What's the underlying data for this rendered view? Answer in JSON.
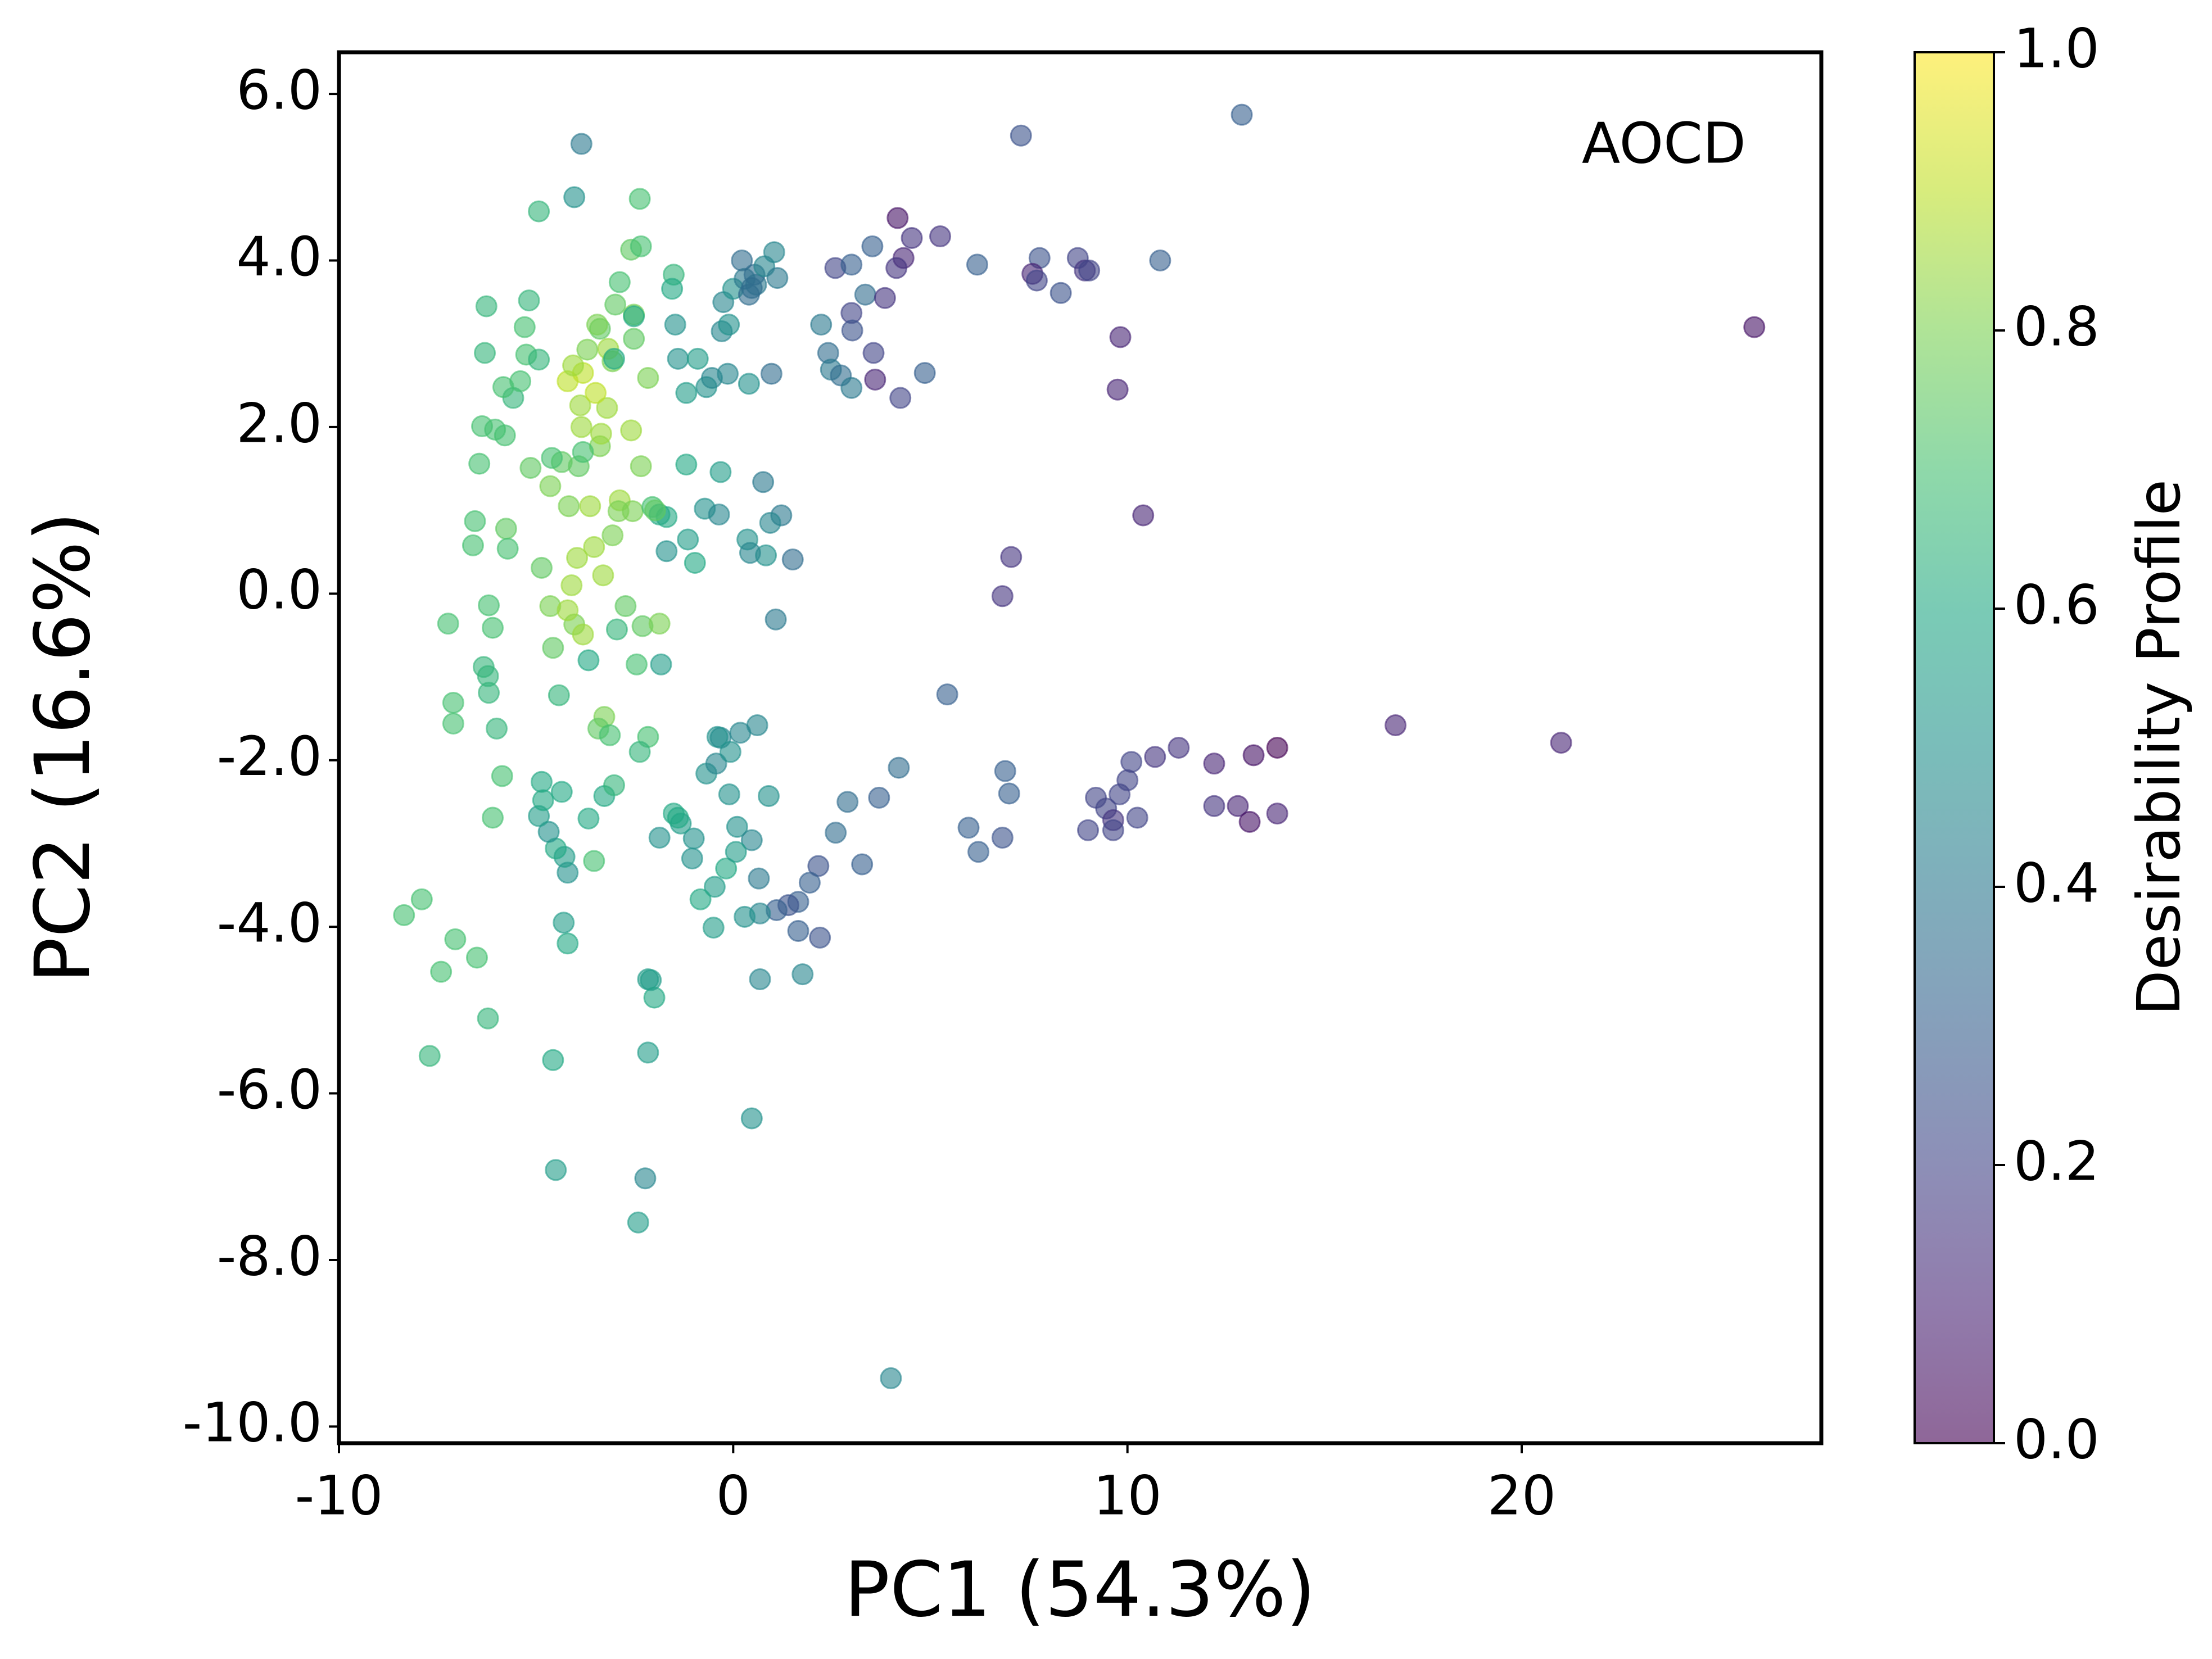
{
  "chart_data": {
    "type": "scatter",
    "xlabel": "PC1 (54.3%)",
    "ylabel": "PC2 (16.6%)",
    "annotation": "AOCD",
    "colormap": "viridis",
    "alpha": 0.6,
    "xlim": [
      -10,
      27.6
    ],
    "xticks": [
      -10,
      0,
      10,
      20
    ],
    "ylim": [
      -10.2,
      6.5
    ],
    "yticks": [
      {
        "value": 6,
        "label": "6.0"
      },
      {
        "value": 4,
        "label": "4.0"
      },
      {
        "value": 2,
        "label": "2.0"
      },
      {
        "value": 0,
        "label": "0.0"
      },
      {
        "value": -2,
        "label": "-2.0"
      },
      {
        "value": -4,
        "label": "-4.0"
      },
      {
        "value": -6,
        "label": "-6.0"
      },
      {
        "value": -8,
        "label": "-8.0"
      },
      {
        "value": -10,
        "label": "-10.0"
      }
    ],
    "colorbar": {
      "label": "Desirability Profile",
      "lim": [
        0,
        1
      ],
      "ticks": [
        {
          "value": 0,
          "label": "0.0"
        },
        0.2,
        0.4,
        0.6,
        0.8,
        {
          "value": 1,
          "label": "1.0"
        }
      ]
    },
    "x": [
      25.9,
      12.9,
      7.3,
      -3.85,
      4.0,
      0.47,
      -2.23,
      -2.41,
      -4.5,
      -4.57,
      -7.7,
      -6.22,
      -7.41,
      -6.5,
      -7.05,
      -8.35,
      -7.9,
      16.8,
      21.0,
      13.8,
      13.2,
      12.2,
      11.3,
      10.7,
      10.1,
      10.0,
      9.8,
      9.2,
      9.46,
      9.64,
      9.64,
      9.0,
      10.25,
      12.2,
      12.8,
      13.1,
      13.8,
      10.4,
      7.05,
      6.83,
      5.43,
      6.9,
      7.0,
      6.83,
      5.97,
      6.22,
      4.2,
      3.7,
      2.9,
      2.6,
      3.27,
      2.16,
      1.94,
      1.65,
      1.4,
      1.1,
      1.65,
      2.2,
      1.76,
      0.68,
      0.68,
      0.29,
      0.65,
      0.1,
      0.47,
      0.9,
      -0.1,
      -0.68,
      -0.43,
      -0.32,
      -0.07,
      0.18,
      0.61,
      -0.4,
      -0.18,
      0.07,
      -0.47,
      -0.83,
      -0.5,
      -1.04,
      -1.0,
      -1.33,
      -1.51,
      -1.4,
      -1.87,
      -2.16,
      -2.0,
      -2.09,
      -2.16,
      -4.2,
      -4.3,
      -4.2,
      -4.28,
      -4.5,
      -4.68,
      -4.93,
      -4.82,
      -4.35,
      -4.86,
      -3.53,
      -3.67,
      -3.27,
      -3.02,
      -6.1,
      -5.86,
      -6.0,
      -7.1,
      -7.1,
      -6.2,
      -6.33,
      -6.22,
      -7.23,
      -6.1,
      -6.2,
      -5.76,
      -6.55,
      -6.6,
      -5.72,
      -4.86,
      -4.64,
      -4.57,
      -4.42,
      -3.27,
      -3.42,
      -3.13,
      -2.16,
      -2.37,
      -3.67,
      -2.45,
      -1.83,
      -2.95,
      -2.3,
      -1.87,
      -2.73,
      -4.03,
      -3.81,
      -4.2,
      -4.1,
      -3.3,
      -3.96,
      -3.53,
      -3.06,
      -2.88,
      -2.55,
      -2.05,
      -1.87,
      -1.69,
      -1.69,
      -1.15,
      -0.97,
      -0.72,
      -0.36,
      -0.32,
      -1.19,
      0.76,
      1.22,
      0.94,
      0.36,
      0.83,
      1.51,
      1.08,
      0.43,
      -1.98,
      -2.34,
      -3.38,
      -3.92,
      -3.81,
      -4.35,
      -4.6,
      -5.14,
      -4.64,
      -4.17,
      -3.63,
      -2.91,
      -6.44,
      -5.79,
      -6.37,
      -6.04,
      -5.58,
      -5.4,
      -5.83,
      -5.25,
      -6.3,
      -4.93,
      -5.29,
      -6.26,
      -5.18,
      -4.93,
      -4.03,
      -2.37,
      -3.35,
      -3.85,
      -3.2,
      -3.88,
      -3.49,
      -4.2,
      -3.81,
      -4.06,
      -3.7,
      -3.06,
      -3.17,
      -2.59,
      -2.16,
      -3.02,
      -3.38,
      -3.45,
      -2.99,
      -2.52,
      -2.52,
      -2.52,
      -2.88,
      -2.59,
      -2.34,
      -1.47,
      -1.4,
      -0.9,
      -1.19,
      -0.68,
      -1.51,
      -1.55,
      -0.29,
      -0.11,
      -0.25,
      0.0,
      0.29,
      0.58,
      0.54,
      0.79,
      1.04,
      1.12,
      0.22,
      0.4,
      0.47,
      -0.54,
      -0.14,
      0.4,
      0.97,
      2.23,
      2.41,
      2.48,
      2.73,
      3.0,
      2.59,
      3.0,
      3.53,
      3.35,
      3.0,
      3.02,
      3.56,
      3.6,
      3.85,
      4.17,
      4.32,
      4.14,
      4.53,
      5.25,
      4.24,
      4.86,
      6.19,
      7.77,
      7.59,
      7.7,
      8.31,
      8.74,
      8.92,
      9.03,
      10.83,
      9.82,
      9.75
    ],
    "values": [
      3.2,
      5.75,
      5.5,
      5.4,
      -9.42,
      -6.3,
      -7.02,
      -7.55,
      -6.92,
      -5.6,
      -5.55,
      -5.1,
      -4.54,
      -4.37,
      -4.15,
      -3.86,
      -3.67,
      -1.58,
      -1.79,
      -1.85,
      -1.94,
      -2.04,
      -1.85,
      -1.96,
      -2.02,
      -2.24,
      -2.41,
      -2.45,
      -2.58,
      -2.72,
      -2.84,
      -2.84,
      -2.69,
      -2.55,
      -2.55,
      -2.74,
      -2.64,
      0.94,
      0.44,
      -0.03,
      -1.21,
      -2.13,
      -2.4,
      -2.93,
      -2.81,
      -3.1,
      -2.09,
      -2.45,
      -2.5,
      -2.87,
      -3.25,
      -3.27,
      -3.47,
      -3.7,
      -3.74,
      -3.8,
      -4.05,
      -4.13,
      -4.57,
      -4.63,
      -3.84,
      -3.88,
      -3.42,
      -2.8,
      -2.96,
      -2.43,
      -2.41,
      -2.16,
      -2.04,
      -1.73,
      -1.9,
      -1.67,
      -1.58,
      -1.72,
      -3.3,
      -3.1,
      -3.52,
      -3.67,
      -4.01,
      -3.18,
      -2.94,
      -2.76,
      -2.64,
      -2.69,
      -2.93,
      -4.63,
      -4.85,
      -4.64,
      -5.51,
      -4.2,
      -3.95,
      -3.35,
      -3.16,
      -3.06,
      -2.86,
      -2.67,
      -2.48,
      -2.38,
      -2.26,
      -3.21,
      -2.7,
      -2.43,
      -2.3,
      -2.69,
      -2.19,
      -1.62,
      -1.56,
      -1.31,
      -1.19,
      -0.88,
      -0.99,
      -0.36,
      -0.41,
      -0.14,
      0.78,
      0.87,
      0.58,
      0.54,
      0.31,
      -0.15,
      -0.65,
      -1.22,
      -1.48,
      -1.62,
      -1.7,
      -1.72,
      -1.9,
      -0.8,
      -0.85,
      -0.85,
      -0.43,
      -0.39,
      -0.36,
      -0.15,
      -0.37,
      -0.49,
      -0.2,
      0.1,
      0.22,
      0.43,
      0.56,
      0.7,
      1.12,
      0.99,
      1.04,
      0.95,
      0.92,
      0.51,
      0.65,
      0.37,
      1.02,
      0.95,
      1.46,
      1.55,
      1.34,
      0.94,
      0.85,
      0.65,
      0.46,
      0.41,
      -0.31,
      0.49,
      1.0,
      1.53,
      1.77,
      1.53,
      1.7,
      1.58,
      1.63,
      1.51,
      1.29,
      1.05,
      1.05,
      0.99,
      1.56,
      1.9,
      2.01,
      1.97,
      2.35,
      2.55,
      2.48,
      2.87,
      2.89,
      2.81,
      3.2,
      3.45,
      3.52,
      4.59,
      4.76,
      4.74,
      1.92,
      2.0,
      2.23,
      2.26,
      2.41,
      2.55,
      2.65,
      2.74,
      2.93,
      2.79,
      2.94,
      1.96,
      2.59,
      2.82,
      3.18,
      3.23,
      3.47,
      3.35,
      3.06,
      3.33,
      3.74,
      4.13,
      4.17,
      3.23,
      2.82,
      2.82,
      2.41,
      2.48,
      3.83,
      3.66,
      3.15,
      3.23,
      3.5,
      3.66,
      3.78,
      3.71,
      3.83,
      3.93,
      4.1,
      3.79,
      4.0,
      3.59,
      3.67,
      2.59,
      2.64,
      2.52,
      2.64,
      3.23,
      2.89,
      2.69,
      2.62,
      2.47,
      3.91,
      3.95,
      4.17,
      3.59,
      3.37,
      3.16,
      2.89,
      2.57,
      3.55,
      4.51,
      4.03,
      3.91,
      4.27,
      4.29,
      2.35,
      2.65,
      3.95,
      4.03,
      3.84,
      3.76,
      3.61,
      4.03,
      3.88,
      3.88,
      4.0,
      3.08,
      2.45
    ],
    "color_values": [
      0.05,
      0.3,
      0.25,
      0.4,
      0.45,
      0.5,
      0.45,
      0.55,
      0.55,
      0.6,
      0.65,
      0.65,
      0.7,
      0.7,
      0.7,
      0.7,
      0.7,
      0.1,
      0.1,
      0.0,
      0.05,
      0.1,
      0.15,
      0.15,
      0.2,
      0.2,
      0.2,
      0.2,
      0.2,
      0.15,
      0.2,
      0.2,
      0.2,
      0.15,
      0.1,
      0.05,
      0.1,
      0.1,
      0.15,
      0.15,
      0.3,
      0.3,
      0.3,
      0.25,
      0.3,
      0.3,
      0.35,
      0.3,
      0.35,
      0.35,
      0.3,
      0.25,
      0.3,
      0.3,
      0.25,
      0.3,
      0.3,
      0.25,
      0.45,
      0.45,
      0.45,
      0.5,
      0.4,
      0.5,
      0.45,
      0.5,
      0.5,
      0.5,
      0.45,
      0.45,
      0.5,
      0.45,
      0.45,
      0.5,
      0.6,
      0.55,
      0.55,
      0.6,
      0.55,
      0.5,
      0.5,
      0.55,
      0.6,
      0.6,
      0.5,
      0.55,
      0.6,
      0.55,
      0.55,
      0.6,
      0.55,
      0.5,
      0.55,
      0.6,
      0.5,
      0.55,
      0.6,
      0.6,
      0.6,
      0.7,
      0.6,
      0.6,
      0.65,
      0.7,
      0.7,
      0.65,
      0.7,
      0.7,
      0.65,
      0.65,
      0.65,
      0.7,
      0.7,
      0.7,
      0.75,
      0.7,
      0.7,
      0.7,
      0.75,
      0.8,
      0.75,
      0.65,
      0.8,
      0.75,
      0.7,
      0.7,
      0.65,
      0.6,
      0.7,
      0.55,
      0.65,
      0.75,
      0.8,
      0.75,
      0.8,
      0.85,
      0.85,
      0.85,
      0.85,
      0.85,
      0.85,
      0.8,
      0.85,
      0.8,
      0.7,
      0.6,
      0.6,
      0.5,
      0.55,
      0.6,
      0.5,
      0.45,
      0.55,
      0.6,
      0.4,
      0.4,
      0.45,
      0.5,
      0.5,
      0.35,
      0.4,
      0.45,
      0.75,
      0.8,
      0.8,
      0.75,
      0.7,
      0.75,
      0.7,
      0.75,
      0.8,
      0.8,
      0.85,
      0.8,
      0.7,
      0.7,
      0.7,
      0.7,
      0.65,
      0.7,
      0.7,
      0.7,
      0.65,
      0.65,
      0.7,
      0.65,
      0.65,
      0.65,
      0.5,
      0.7,
      0.85,
      0.85,
      0.85,
      0.85,
      0.9,
      0.9,
      0.9,
      0.85,
      0.8,
      0.8,
      0.85,
      0.85,
      0.8,
      0.6,
      0.75,
      0.8,
      0.75,
      0.8,
      0.75,
      0.6,
      0.7,
      0.75,
      0.7,
      0.5,
      0.5,
      0.55,
      0.55,
      0.5,
      0.65,
      0.6,
      0.45,
      0.5,
      0.45,
      0.5,
      0.4,
      0.4,
      0.35,
      0.45,
      0.45,
      0.4,
      0.35,
      0.35,
      0.35,
      0.45,
      0.45,
      0.5,
      0.35,
      0.4,
      0.35,
      0.4,
      0.35,
      0.4,
      0.2,
      0.3,
      0.3,
      0.35,
      0.2,
      0.25,
      0.2,
      0.1,
      0.15,
      0.05,
      0.1,
      0.15,
      0.15,
      0.15,
      0.2,
      0.3,
      0.3,
      0.25,
      0.1,
      0.2,
      0.25,
      0.2,
      0.15,
      0.2,
      0.3,
      0.1,
      0.1
    ]
  }
}
